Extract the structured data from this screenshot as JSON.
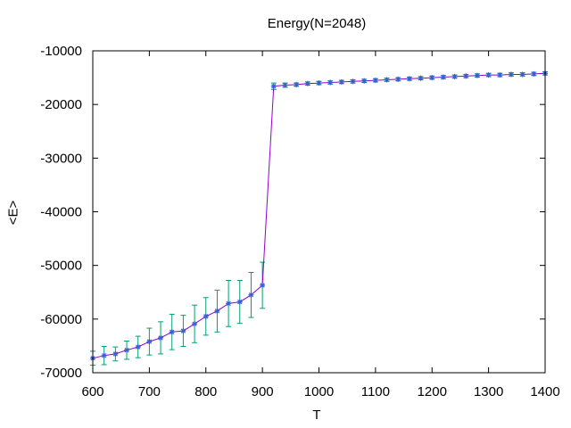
{
  "chart_data": {
    "type": "line",
    "title": "Energy(N=2048)",
    "xlabel": "T",
    "ylabel": "<E>",
    "xlim": [
      600,
      1400
    ],
    "ylim": [
      -70000,
      -10000
    ],
    "xticks": [
      600,
      700,
      800,
      900,
      1000,
      1100,
      1200,
      1300,
      1400
    ],
    "yticks": [
      -70000,
      -60000,
      -50000,
      -40000,
      -30000,
      -20000,
      -10000
    ],
    "grid": false,
    "legend": "none",
    "colors": {
      "line": "#9400d3",
      "marker": "#3a5fcd",
      "errorbar": "#009e73"
    },
    "series": [
      {
        "x": [
          600,
          620,
          640,
          660,
          680,
          700,
          720,
          740,
          760,
          780,
          800,
          820,
          840,
          860,
          880,
          900,
          920,
          940,
          960,
          980,
          1000,
          1020,
          1040,
          1060,
          1080,
          1100,
          1120,
          1140,
          1160,
          1180,
          1200,
          1220,
          1240,
          1260,
          1280,
          1300,
          1320,
          1340,
          1360,
          1380,
          1400
        ],
        "y": [
          -67300,
          -66800,
          -66500,
          -65800,
          -65200,
          -64200,
          -63500,
          -62400,
          -62200,
          -60900,
          -59500,
          -58500,
          -57100,
          -56800,
          -55500,
          -53700,
          -16600,
          -16400,
          -16300,
          -16100,
          -16000,
          -15900,
          -15800,
          -15700,
          -15600,
          -15500,
          -15400,
          -15300,
          -15200,
          -15100,
          -15000,
          -14900,
          -14800,
          -14700,
          -14600,
          -14500,
          -14500,
          -14400,
          -14400,
          -14300,
          -14200
        ],
        "error": [
          1300,
          1700,
          1300,
          1700,
          2000,
          2500,
          3000,
          3300,
          2900,
          3500,
          3500,
          3900,
          4300,
          4000,
          4200,
          4300,
          600,
          400,
          300,
          300,
          300,
          300,
          300,
          300,
          300,
          300,
          300,
          300,
          300,
          300,
          300,
          300,
          300,
          300,
          300,
          300,
          300,
          300,
          300,
          300,
          300
        ]
      }
    ]
  }
}
